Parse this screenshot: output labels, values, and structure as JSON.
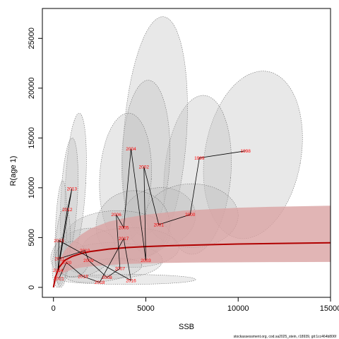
{
  "chart_data": {
    "type": "scatter",
    "title": "",
    "xlabel": "SSB",
    "ylabel": "R(age 1)",
    "xlim": [
      -600,
      15000
    ],
    "ylim": [
      -1000,
      28000
    ],
    "x_ticks": [
      0,
      5000,
      10000,
      15000
    ],
    "y_ticks": [
      0,
      5000,
      10000,
      15000,
      20000,
      25000
    ],
    "grid": false,
    "legend": "none",
    "colors": {
      "curve": "#b00000",
      "band": "#d9a3a3",
      "ellipse_fill": "#bdbdbd",
      "ellipse_stroke": "#707070",
      "points": "#ff0000",
      "path": "#000000"
    },
    "stock_recruit_curve": {
      "x": [
        0,
        100,
        300,
        600,
        1000,
        1500,
        2000,
        3000,
        4000,
        5000,
        6000,
        7000,
        8000,
        10000,
        12000,
        15000
      ],
      "y": [
        0,
        1000,
        2000,
        2700,
        3100,
        3400,
        3600,
        3850,
        4000,
        4100,
        4170,
        4220,
        4270,
        4350,
        4400,
        4480
      ]
    },
    "uncertainty_band": {
      "x": [
        0,
        300,
        600,
        1000,
        1500,
        2000,
        3000,
        4000,
        5000,
        6000,
        7000,
        8000,
        10000,
        12000,
        15000
      ],
      "lower": [
        0,
        1200,
        1500,
        1800,
        2000,
        2100,
        2250,
        2350,
        2400,
        2450,
        2480,
        2500,
        2520,
        2540,
        2550
      ],
      "upper": [
        0,
        2600,
        3700,
        4500,
        5300,
        5900,
        6600,
        7000,
        7300,
        7500,
        7700,
        7800,
        8000,
        8100,
        8200
      ]
    },
    "points": [
      {
        "label": "1998",
        "x": 10400,
        "y": 13700
      },
      {
        "label": "1999",
        "x": 7900,
        "y": 13000
      },
      {
        "label": "2000",
        "x": 7400,
        "y": 7300
      },
      {
        "label": "2001",
        "x": 5700,
        "y": 6300
      },
      {
        "label": "2002",
        "x": 4900,
        "y": 12100
      },
      {
        "label": "2003",
        "x": 5000,
        "y": 2700
      },
      {
        "label": "2004",
        "x": 4200,
        "y": 13900
      },
      {
        "label": "2005",
        "x": 3800,
        "y": 6000
      },
      {
        "label": "2006",
        "x": 3400,
        "y": 7300
      },
      {
        "label": "2007",
        "x": 3600,
        "y": 1900
      },
      {
        "label": "2008",
        "x": 2900,
        "y": 1000
      },
      {
        "label": "2009",
        "x": 1900,
        "y": 2700
      },
      {
        "label": "2010",
        "x": 1700,
        "y": 3700
      },
      {
        "label": "2011",
        "x": 330,
        "y": 2900
      },
      {
        "label": "2012",
        "x": 750,
        "y": 7800
      },
      {
        "label": "2013",
        "x": 1000,
        "y": 9900
      },
      {
        "label": "2014",
        "x": 250,
        "y": 1700
      },
      {
        "label": "2015",
        "x": 300,
        "y": 4700
      },
      {
        "label": "2016",
        "x": 4200,
        "y": 700
      },
      {
        "label": "2017",
        "x": 3800,
        "y": 4900
      },
      {
        "label": "2018",
        "x": 2500,
        "y": 500
      },
      {
        "label": "2019",
        "x": 1600,
        "y": 1100
      },
      {
        "label": "2020",
        "x": 700,
        "y": 2500
      },
      {
        "label": "2021",
        "x": 300,
        "y": 900
      }
    ],
    "ellipses": [
      {
        "cx": 10800,
        "cy": 13300,
        "rx": 2600,
        "ry": 8500,
        "rot": 10,
        "op": 0.35
      },
      {
        "cx": 7800,
        "cy": 11300,
        "rx": 1800,
        "ry": 8000,
        "rot": 5,
        "op": 0.35
      },
      {
        "cx": 5500,
        "cy": 15200,
        "rx": 1700,
        "ry": 12000,
        "rot": 4,
        "op": 0.35
      },
      {
        "cx": 5000,
        "cy": 13000,
        "rx": 1300,
        "ry": 7800,
        "rot": 2,
        "op": 0.35
      },
      {
        "cx": 3900,
        "cy": 11000,
        "rx": 1400,
        "ry": 6500,
        "rot": 3,
        "op": 0.35
      },
      {
        "cx": 5700,
        "cy": 7000,
        "rx": 2000,
        "ry": 3000,
        "rot": -10,
        "op": 0.35
      },
      {
        "cx": 7500,
        "cy": 7200,
        "rx": 2500,
        "ry": 3200,
        "rot": 0,
        "op": 0.35
      },
      {
        "cx": 4300,
        "cy": 6200,
        "rx": 2000,
        "ry": 3500,
        "rot": -15,
        "op": 0.35
      },
      {
        "cx": 3500,
        "cy": 5200,
        "rx": 2800,
        "ry": 2500,
        "rot": 0,
        "op": 0.35
      },
      {
        "cx": 4200,
        "cy": 4000,
        "rx": 2600,
        "ry": 2000,
        "rot": 0,
        "op": 0.3
      },
      {
        "cx": 3200,
        "cy": 2700,
        "rx": 2700,
        "ry": 1800,
        "rot": 0,
        "op": 0.3
      },
      {
        "cx": 4000,
        "cy": 800,
        "rx": 3700,
        "ry": 500,
        "rot": 0,
        "op": 0.3
      },
      {
        "cx": 2700,
        "cy": 1700,
        "rx": 2100,
        "ry": 1100,
        "rot": -8,
        "op": 0.3
      },
      {
        "cx": 1600,
        "cy": 3500,
        "rx": 1800,
        "ry": 2300,
        "rot": -20,
        "op": 0.3
      },
      {
        "cx": 1200,
        "cy": 10500,
        "rx": 550,
        "ry": 7000,
        "rot": 3,
        "op": 0.35
      },
      {
        "cx": 850,
        "cy": 9000,
        "rx": 450,
        "ry": 6000,
        "rot": 3,
        "op": 0.35
      },
      {
        "cx": 400,
        "cy": 5500,
        "rx": 300,
        "ry": 5200,
        "rot": 2,
        "op": 0.35
      },
      {
        "cx": 500,
        "cy": 4000,
        "rx": 400,
        "ry": 4000,
        "rot": 3,
        "op": 0.3
      },
      {
        "cx": 350,
        "cy": 2500,
        "rx": 400,
        "ry": 2500,
        "rot": 5,
        "op": 0.3
      },
      {
        "cx": 1000,
        "cy": 2800,
        "rx": 900,
        "ry": 1800,
        "rot": -10,
        "op": 0.3
      }
    ]
  },
  "footnote": "stockassessment.org, cod.sa2025_stein, r18939, git:1cc464b806f"
}
